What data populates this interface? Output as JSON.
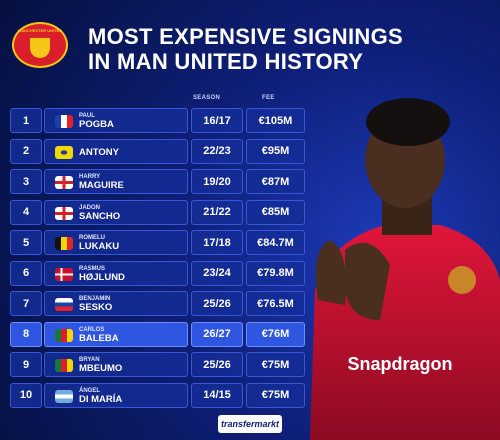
{
  "header": {
    "badge": "MANCHESTER UNITED",
    "title_line_1": "MOST EXPENSIVE SIGNINGS",
    "title_line_2": "IN MAN UNITED HISTORY"
  },
  "table": {
    "columns": [
      "SEASON",
      "FEE"
    ],
    "rows": [
      {
        "rank": "1",
        "first_name": "PAUL",
        "last_name": "POGBA",
        "season": "16/17",
        "fee": "€105M"
      },
      {
        "rank": "2",
        "first_name": "",
        "last_name": "ANTONY",
        "season": "22/23",
        "fee": "€95M"
      },
      {
        "rank": "3",
        "first_name": "HARRY",
        "last_name": "MAGUIRE",
        "season": "19/20",
        "fee": "€87M"
      },
      {
        "rank": "4",
        "first_name": "JADON",
        "last_name": "SANCHO",
        "season": "21/22",
        "fee": "€85M"
      },
      {
        "rank": "5",
        "first_name": "ROMELU",
        "last_name": "LUKAKU",
        "season": "17/18",
        "fee": "€84.7M"
      },
      {
        "rank": "6",
        "first_name": "RASMUS",
        "last_name": "HØJLUND",
        "season": "23/24",
        "fee": "€79.8M"
      },
      {
        "rank": "7",
        "first_name": "BENJAMIN",
        "last_name": "SESKO",
        "season": "25/26",
        "fee": "€76.5M"
      },
      {
        "rank": "8",
        "first_name": "CARLOS",
        "last_name": "BALEBA",
        "season": "26/27",
        "fee": "€76M"
      },
      {
        "rank": "9",
        "first_name": "BRYAN",
        "last_name": "MBEUMO",
        "season": "25/26",
        "fee": "€75M"
      },
      {
        "rank": "10",
        "first_name": "ÁNGEL",
        "last_name": "DI MARÍA",
        "season": "14/15",
        "fee": "€75M"
      }
    ]
  },
  "photo": {
    "sponsor": "Snapdragon"
  },
  "footer": {
    "logo": "transfermarkt"
  }
}
